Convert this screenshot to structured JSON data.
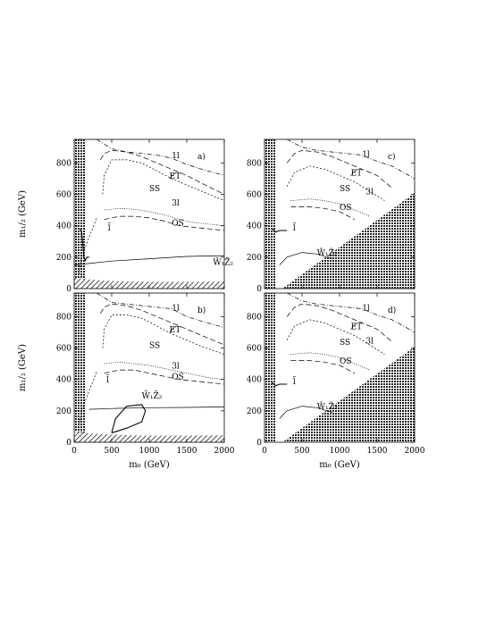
{
  "chart_data": [
    {
      "panel": "a)",
      "type": "line",
      "xlim": [
        0,
        2000
      ],
      "ylim": [
        0,
        950
      ],
      "xticks": [
        "",
        "",
        "",
        "",
        ""
      ],
      "yticks": [
        "0",
        "200",
        "400",
        "600",
        "800"
      ],
      "xlabel": "",
      "ylabel": "m₁/₂ (GeV)",
      "labels": [
        {
          "text": "1l",
          "x": 1300,
          "y": 830
        },
        {
          "text": "E̸T",
          "x": 1270,
          "y": 700
        },
        {
          "text": "SS",
          "x": 1000,
          "y": 620
        },
        {
          "text": "3l",
          "x": 1300,
          "y": 530
        },
        {
          "text": "OS",
          "x": 1300,
          "y": 400
        },
        {
          "text": "l̃",
          "x": 450,
          "y": 370
        },
        {
          "text": "W̃₁Z̃₂",
          "x": 1850,
          "y": 150
        }
      ],
      "series": [
        {
          "style": "dash1",
          "x": [
            300,
            500,
            700,
            900,
            1100,
            1300,
            1500,
            1700,
            2000
          ],
          "y": [
            950,
            890,
            870,
            860,
            850,
            830,
            790,
            760,
            720
          ]
        },
        {
          "style": "dash3",
          "x": [
            350,
            400,
            500,
            700,
            900,
            1100,
            1300,
            1500,
            1700,
            2000
          ],
          "y": [
            820,
            860,
            880,
            870,
            840,
            800,
            760,
            720,
            670,
            600
          ]
        },
        {
          "style": "dash2",
          "x": [
            380,
            400,
            500,
            700,
            900,
            1100,
            1300,
            1500,
            1700,
            2000
          ],
          "y": [
            600,
            720,
            820,
            820,
            800,
            750,
            700,
            660,
            620,
            560
          ]
        },
        {
          "style": "dash4",
          "x": [
            400,
            600,
            800,
            1000,
            1200,
            1400,
            1600,
            1800,
            2000
          ],
          "y": [
            500,
            510,
            505,
            490,
            470,
            440,
            420,
            410,
            400
          ]
        },
        {
          "style": "dash3",
          "x": [
            400,
            600,
            800,
            1000,
            1200,
            1400,
            1600,
            1800,
            2000
          ],
          "y": [
            440,
            460,
            460,
            450,
            430,
            400,
            390,
            380,
            370
          ]
        },
        {
          "style": "solid",
          "x": [
            0,
            200,
            500,
            1000,
            1500,
            2000
          ],
          "y": [
            150,
            160,
            175,
            190,
            205,
            210
          ]
        },
        {
          "style": "solid-thick",
          "x": [
            80,
            100,
            130,
            150,
            170,
            200
          ],
          "y": [
            380,
            360,
            200,
            180,
            200,
            200
          ]
        },
        {
          "style": "dash2",
          "x": [
            60,
            100,
            200,
            260,
            300
          ],
          "y": [
            90,
            200,
            330,
            400,
            450
          ]
        }
      ]
    },
    {
      "panel": "b)",
      "type": "line",
      "xlim": [
        0,
        2000
      ],
      "ylim": [
        0,
        950
      ],
      "xticks": [
        "0",
        "500",
        "1000",
        "1500",
        "2000"
      ],
      "yticks": [
        "0",
        "200",
        "400",
        "600",
        "800"
      ],
      "xlabel": "m₀ (GeV)",
      "ylabel": "m₁/₂ (GeV)",
      "labels": [
        {
          "text": "1l",
          "x": 1300,
          "y": 840
        },
        {
          "text": "E̸T",
          "x": 1270,
          "y": 700
        },
        {
          "text": "SS",
          "x": 1000,
          "y": 600
        },
        {
          "text": "3l",
          "x": 1300,
          "y": 470
        },
        {
          "text": "OS",
          "x": 1300,
          "y": 400
        },
        {
          "text": "l̃",
          "x": 430,
          "y": 380
        },
        {
          "text": "W̃₁Z̃₂",
          "x": 900,
          "y": 280
        }
      ],
      "series": [
        {
          "style": "dash1",
          "x": [
            300,
            500,
            700,
            900,
            1100,
            1300,
            1500,
            1700,
            2000
          ],
          "y": [
            950,
            890,
            880,
            870,
            860,
            850,
            800,
            770,
            730
          ]
        },
        {
          "style": "dash3",
          "x": [
            350,
            400,
            500,
            700,
            900,
            1100,
            1300,
            1500,
            1700,
            2000
          ],
          "y": [
            820,
            860,
            880,
            870,
            840,
            800,
            760,
            720,
            680,
            620
          ]
        },
        {
          "style": "dash2",
          "x": [
            380,
            400,
            500,
            700,
            900,
            1100,
            1300,
            1500,
            1700,
            2000
          ],
          "y": [
            600,
            720,
            810,
            810,
            790,
            740,
            690,
            650,
            610,
            560
          ]
        },
        {
          "style": "dash4",
          "x": [
            400,
            600,
            800,
            1000,
            1200,
            1400,
            1600,
            1800,
            2000
          ],
          "y": [
            500,
            510,
            500,
            490,
            470,
            450,
            430,
            410,
            400
          ]
        },
        {
          "style": "dash3",
          "x": [
            400,
            600,
            800,
            1000,
            1200,
            1400,
            1600,
            1800,
            2000
          ],
          "y": [
            440,
            460,
            460,
            440,
            420,
            400,
            390,
            380,
            370
          ]
        },
        {
          "style": "solid",
          "x": [
            200,
            500,
            1000,
            1500,
            2000
          ],
          "y": [
            210,
            215,
            220,
            222,
            225
          ]
        },
        {
          "style": "solid-thick",
          "x": [
            500,
            700,
            900,
            950,
            900,
            700,
            550,
            500
          ],
          "y": [
            60,
            90,
            130,
            200,
            240,
            230,
            150,
            60
          ]
        },
        {
          "style": "dash2",
          "x": [
            60,
            100,
            200,
            260,
            300
          ],
          "y": [
            90,
            200,
            330,
            400,
            450
          ]
        }
      ]
    },
    {
      "panel": "c)",
      "type": "line",
      "xlim": [
        0,
        2000
      ],
      "ylim": [
        0,
        950
      ],
      "xticks": [
        "",
        "",
        "",
        "",
        ""
      ],
      "yticks": [
        "0",
        "200",
        "400",
        "600",
        "800"
      ],
      "xlabel": "",
      "ylabel": "",
      "labels": [
        {
          "text": "1l",
          "x": 1300,
          "y": 840
        },
        {
          "text": "E̸T",
          "x": 1150,
          "y": 720
        },
        {
          "text": "SS",
          "x": 1000,
          "y": 620
        },
        {
          "text": "3l",
          "x": 1350,
          "y": 600
        },
        {
          "text": "OS",
          "x": 1000,
          "y": 500
        },
        {
          "text": "l̃",
          "x": 380,
          "y": 370
        },
        {
          "text": "W̃₁Z̃₂",
          "x": 700,
          "y": 210
        }
      ],
      "series": [
        {
          "style": "dash1",
          "x": [
            300,
            500,
            700,
            900,
            1100,
            1300,
            1500,
            1700,
            2000
          ],
          "y": [
            950,
            900,
            880,
            870,
            860,
            850,
            810,
            780,
            700
          ]
        },
        {
          "style": "dash3",
          "x": [
            300,
            400,
            500,
            700,
            900,
            1100,
            1300,
            1500,
            1700
          ],
          "y": [
            800,
            860,
            880,
            870,
            840,
            800,
            760,
            720,
            640
          ]
        },
        {
          "style": "dash2",
          "x": [
            300,
            400,
            600,
            800,
            1000,
            1200,
            1400,
            1600
          ],
          "y": [
            650,
            740,
            780,
            760,
            720,
            680,
            620,
            560
          ]
        },
        {
          "style": "dash4",
          "x": [
            350,
            600,
            800,
            1000,
            1200,
            1400
          ],
          "y": [
            560,
            570,
            560,
            540,
            500,
            460
          ]
        },
        {
          "style": "dash3",
          "x": [
            350,
            600,
            800,
            1000,
            1200
          ],
          "y": [
            520,
            520,
            510,
            490,
            440
          ]
        },
        {
          "style": "solid",
          "x": [
            200,
            300,
            500,
            700,
            900
          ],
          "y": [
            150,
            200,
            230,
            220,
            190
          ]
        },
        {
          "style": "solid-thick",
          "x": [
            100,
            150,
            200,
            250,
            300
          ],
          "y": [
            380,
            360,
            370,
            370,
            370
          ]
        }
      ]
    },
    {
      "panel": "d)",
      "type": "line",
      "xlim": [
        0,
        2000
      ],
      "ylim": [
        0,
        950
      ],
      "xticks": [
        "0",
        "500",
        "1000",
        "1500",
        "2000"
      ],
      "yticks": [
        "0",
        "200",
        "400",
        "600",
        "800"
      ],
      "xlabel": "m₀ (GeV)",
      "ylabel": "",
      "labels": [
        {
          "text": "1l",
          "x": 1300,
          "y": 840
        },
        {
          "text": "E̸T",
          "x": 1150,
          "y": 720
        },
        {
          "text": "SS",
          "x": 1000,
          "y": 620
        },
        {
          "text": "3l",
          "x": 1350,
          "y": 630
        },
        {
          "text": "OS",
          "x": 1000,
          "y": 500
        },
        {
          "text": "l̃",
          "x": 380,
          "y": 370
        },
        {
          "text": "W̃₁Z̃₂",
          "x": 700,
          "y": 210
        }
      ],
      "series": [
        {
          "style": "dash1",
          "x": [
            300,
            500,
            700,
            900,
            1100,
            1300,
            1500,
            1700,
            2000
          ],
          "y": [
            950,
            900,
            880,
            870,
            860,
            850,
            810,
            780,
            700
          ]
        },
        {
          "style": "dash3",
          "x": [
            300,
            400,
            500,
            700,
            900,
            1100,
            1300,
            1500,
            1700
          ],
          "y": [
            800,
            860,
            880,
            870,
            840,
            800,
            760,
            720,
            640
          ]
        },
        {
          "style": "dash2",
          "x": [
            300,
            400,
            600,
            800,
            1000,
            1200,
            1400,
            1600
          ],
          "y": [
            650,
            740,
            780,
            760,
            720,
            680,
            620,
            560
          ]
        },
        {
          "style": "dash4",
          "x": [
            350,
            600,
            800,
            1000,
            1200,
            1400
          ],
          "y": [
            560,
            570,
            560,
            540,
            500,
            460
          ]
        },
        {
          "style": "dash3",
          "x": [
            350,
            600,
            800,
            1000,
            1200
          ],
          "y": [
            520,
            520,
            510,
            490,
            440
          ]
        },
        {
          "style": "solid",
          "x": [
            200,
            300,
            500,
            700,
            900
          ],
          "y": [
            150,
            200,
            230,
            220,
            190
          ]
        },
        {
          "style": "solid-thick",
          "x": [
            100,
            150,
            200,
            250,
            300
          ],
          "y": [
            380,
            360,
            370,
            370,
            370
          ]
        }
      ]
    }
  ]
}
